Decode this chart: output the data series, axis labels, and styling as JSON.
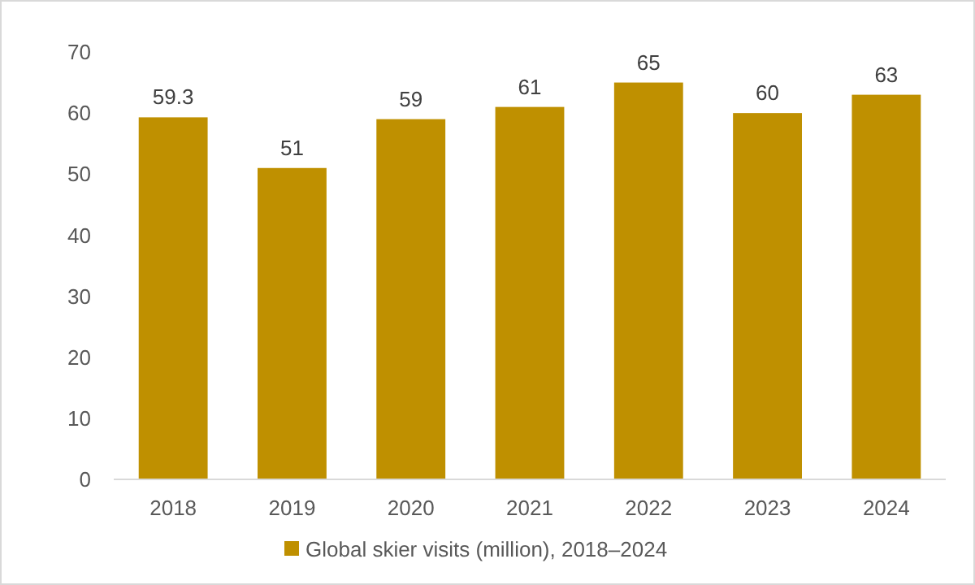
{
  "chart_data": {
    "type": "bar",
    "categories": [
      "2018",
      "2019",
      "2020",
      "2021",
      "2022",
      "2023",
      "2024"
    ],
    "series": [
      {
        "name": "Global skier visits (million), 2018–2024",
        "color": "#bf9000",
        "values": [
          59.3,
          51,
          59,
          61,
          65,
          60,
          63
        ]
      }
    ],
    "ylim": [
      0,
      70
    ],
    "yticks": [
      0,
      10,
      20,
      30,
      40,
      50,
      60,
      70
    ],
    "data_labels": true,
    "legend": "bottom",
    "grid": false
  }
}
